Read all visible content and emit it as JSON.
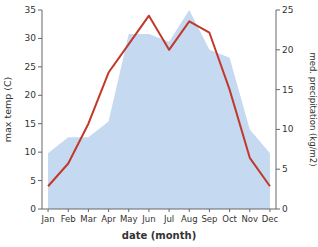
{
  "chart_data": {
    "type": "line",
    "categories": [
      "Jan",
      "Feb",
      "Mar",
      "Apr",
      "May",
      "Jun",
      "Jul",
      "Aug",
      "Sep",
      "Oct",
      "Nov",
      "Dec"
    ],
    "xlabel": "date (month)",
    "ylabel": "max temp (C)",
    "y2label": "med. precipitation (kg/m2)",
    "series": [
      {
        "type": "area",
        "axis": "y2",
        "color": "#c5d9f1",
        "values": [
          7,
          9,
          9,
          11,
          22,
          22,
          21,
          25,
          20,
          19,
          10,
          7
        ]
      },
      {
        "type": "line",
        "color": "#c0392b",
        "values": [
          4,
          8,
          15,
          24,
          29,
          34,
          28,
          33,
          31,
          21,
          9,
          4
        ]
      }
    ],
    "ylim": [
      0,
      35
    ],
    "yticks": [
      0,
      5,
      10,
      15,
      20,
      25,
      30,
      35
    ],
    "y2lim": [
      0,
      25
    ],
    "y2ticks": [
      0,
      5,
      10,
      15,
      20,
      25
    ]
  }
}
